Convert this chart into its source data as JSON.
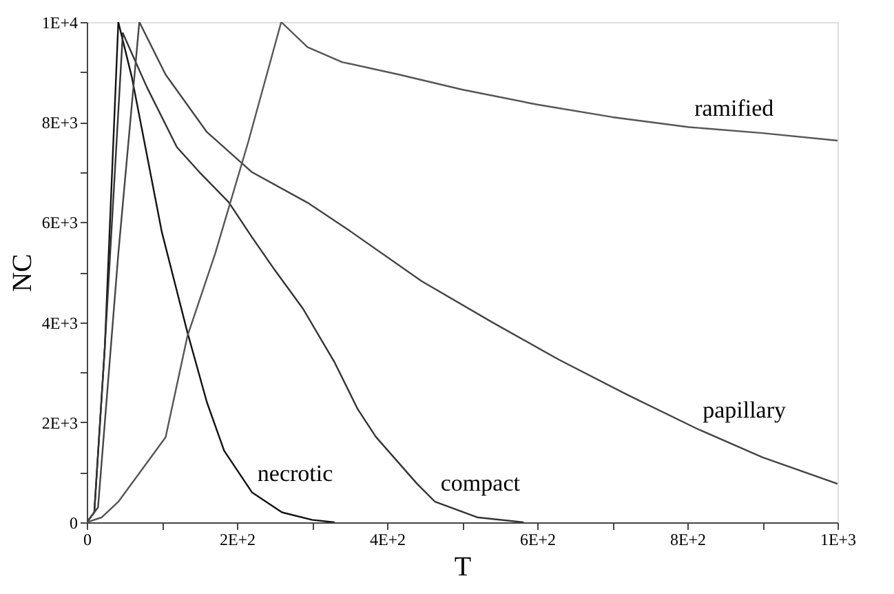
{
  "chart_data": {
    "type": "line",
    "xlabel": "T",
    "ylabel": "NC",
    "xlim": [
      0,
      1000
    ],
    "ylim": [
      0,
      10000
    ],
    "xticks": [
      0,
      {
        "value": 100,
        "label": null
      },
      {
        "value": 200,
        "label": "2E+2"
      },
      {
        "value": 300,
        "label": null
      },
      {
        "value": 400,
        "label": "4E+2"
      },
      {
        "value": 500,
        "label": null
      },
      {
        "value": 600,
        "label": "6E+2"
      },
      {
        "value": 700,
        "label": null
      },
      {
        "value": 800,
        "label": "8E+2"
      },
      {
        "value": 900,
        "label": null
      },
      {
        "value": 1000,
        "label": "1E+3"
      }
    ],
    "yticks": [
      0,
      {
        "value": 1000,
        "label": null
      },
      {
        "value": 2000,
        "label": "2E+3"
      },
      {
        "value": 3000,
        "label": null
      },
      {
        "value": 4000,
        "label": "4E+3"
      },
      {
        "value": 5000,
        "label": null
      },
      {
        "value": 6000,
        "label": "6E+3"
      },
      {
        "value": 7000,
        "label": null
      },
      {
        "value": 8000,
        "label": "8E+3"
      },
      {
        "value": 9000,
        "label": null
      },
      {
        "value": 10000,
        "label": "1E+4"
      }
    ],
    "marker": "none",
    "line_style": "solid",
    "series": [
      {
        "color": "#111111",
        "x": [
          0,
          10,
          24,
          42,
          60,
          100,
          134,
          160,
          183,
          220,
          260,
          300,
          330
        ],
        "values": [
          0,
          200,
          3500,
          10000,
          8900,
          5800,
          3800,
          2400,
          1430,
          600,
          200,
          50,
          0
        ]
      },
      {
        "color": "#333333",
        "x": [
          0,
          10,
          24,
          48,
          80,
          120,
          150,
          189,
          220,
          251,
          288,
          330,
          361,
          385,
          440,
          464,
          520,
          582
        ],
        "values": [
          0,
          200,
          3500,
          9780,
          8700,
          7500,
          7000,
          6400,
          5700,
          5030,
          4270,
          3200,
          2260,
          1710,
          770,
          410,
          100,
          0
        ]
      },
      {
        "color": "#444444",
        "x": [
          0,
          15,
          42,
          70,
          105,
          160,
          220,
          294,
          349,
          446,
          540,
          629,
          720,
          813,
          900,
          1000
        ],
        "values": [
          0,
          300,
          5370,
          10000,
          8950,
          7800,
          7000,
          6390,
          5840,
          4820,
          4000,
          3250,
          2550,
          1870,
          1300,
          770
        ]
      },
      {
        "color": "#555555",
        "x": [
          0,
          20,
          42,
          105,
          134,
          171,
          215,
          259,
          294,
          340,
          416,
          500,
          600,
          700,
          802,
          900,
          1000
        ],
        "values": [
          0,
          100,
          410,
          1700,
          3720,
          5370,
          7600,
          10000,
          9500,
          9200,
          8950,
          8650,
          8350,
          8100,
          7900,
          7780,
          7630
        ]
      }
    ],
    "annotations": [
      {
        "text": "necrotic",
        "x": 220,
        "y": 600
      },
      {
        "text": "compact",
        "x": 464,
        "y": 410
      },
      {
        "text": "papillary",
        "x": 813,
        "y": 1870
      },
      {
        "text": "ramified",
        "x": 802,
        "y": 7900
      }
    ]
  }
}
